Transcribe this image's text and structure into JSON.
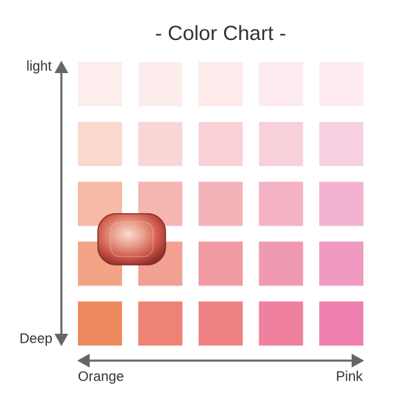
{
  "title": "- Color Chart -",
  "axes": {
    "top": "light",
    "bottom": "Deep",
    "left": "Orange",
    "right": "Pink"
  },
  "swatches": [
    [
      "#fdeeed",
      "#fdecec",
      "#fdeaeb",
      "#fdeaee",
      "#fdebf0"
    ],
    [
      "#fbd7cc",
      "#fad5d3",
      "#f9d1d6",
      "#f8d0da",
      "#f8d0e2"
    ],
    [
      "#f6baa6",
      "#f5b5b0",
      "#f4b3b8",
      "#f4b2c4",
      "#f2b2d0"
    ],
    [
      "#f3a285",
      "#f2a091",
      "#f09aa2",
      "#f09ab2",
      "#f09ac2"
    ],
    [
      "#ee8a5e",
      "#ee8274",
      "#ef8185",
      "#ef809e",
      "#ee80b0"
    ]
  ]
}
